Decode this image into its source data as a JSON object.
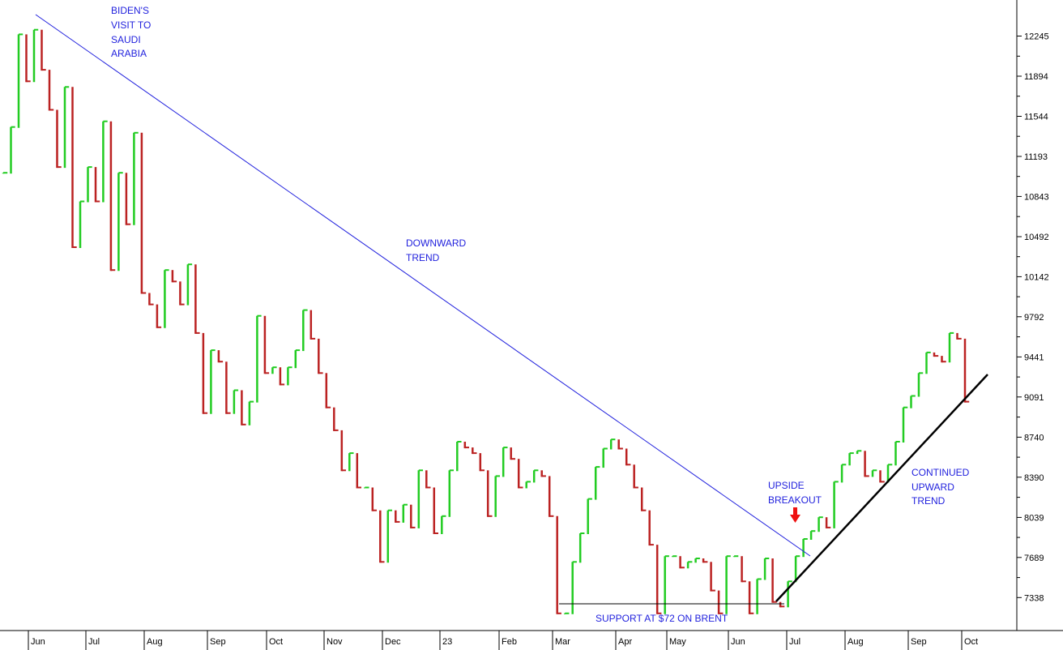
{
  "chart_data": {
    "type": "bar",
    "subtype": "ohlc-price-bars",
    "title": "",
    "xlabel": "",
    "ylabel": "",
    "ylim": [
      7050,
      12560
    ],
    "y_ticks": [
      "12245",
      "11894",
      "11544",
      "11193",
      "10843",
      "10492",
      "10142",
      "9792",
      "9441",
      "9091",
      "8740",
      "8390",
      "8039",
      "7689",
      "7338"
    ],
    "x_ticks": [
      "Jun",
      "Jul",
      "Aug",
      "Sep",
      "Oct",
      "Nov",
      "Dec",
      "23",
      "Feb",
      "Mar",
      "Apr",
      "May",
      "Jun",
      "Jul",
      "Aug",
      "Sep",
      "Oct"
    ],
    "up_color": "#22cc22",
    "down_color": "#bb2222",
    "trendline_color": "#1f1fdd",
    "support_color": "#000000",
    "series": [
      {
        "values": [
          11050,
          11450,
          12260,
          11850,
          12300,
          11950,
          11600,
          11100,
          11800,
          10400,
          10800,
          11100,
          10800,
          11500,
          10200,
          11050,
          10600,
          11400,
          10000,
          9900,
          9700,
          10200,
          10100,
          9900,
          10250,
          9650,
          8950,
          9500,
          9400,
          8950,
          9150,
          8850,
          9050,
          9800,
          9300,
          9350,
          9200,
          9350,
          9500,
          9850,
          9600,
          9300,
          9000,
          8800,
          8450,
          8600,
          8300,
          8300,
          8100,
          7650,
          8100,
          8000,
          8150,
          7950,
          8450,
          8300,
          7900,
          8050,
          8450,
          8700,
          8650,
          8600,
          8450,
          8050,
          8400,
          8650,
          8550,
          8300,
          8350,
          8450,
          8400,
          8050,
          7200,
          7200,
          7650,
          7900,
          8200,
          8480,
          8640,
          8720,
          8640,
          8500,
          8300,
          8100,
          7800,
          7200,
          7700,
          7700,
          7600,
          7650,
          7680,
          7650,
          7400,
          7200,
          7700,
          7700,
          7480,
          7200,
          7500,
          7680,
          7300,
          7260,
          7480,
          7700,
          7850,
          7920,
          8040,
          7950,
          8350,
          8500,
          8600,
          8620,
          8400,
          8450,
          8350,
          8500,
          8700,
          9000,
          9100,
          9300,
          9480,
          9450,
          9400,
          9650,
          9600,
          9050
        ]
      }
    ],
    "annotations": {
      "biden": [
        "BIDEN'S",
        "VISIT TO",
        "SAUDI",
        "ARABIA"
      ],
      "downward": [
        "DOWNWARD",
        "TREND"
      ],
      "upside": [
        "UPSIDE",
        "BREAKOUT"
      ],
      "continued": [
        "CONTINUED",
        "UPWARD",
        "TREND"
      ],
      "support": "SUPPORT AT $72 ON BRENT"
    }
  }
}
